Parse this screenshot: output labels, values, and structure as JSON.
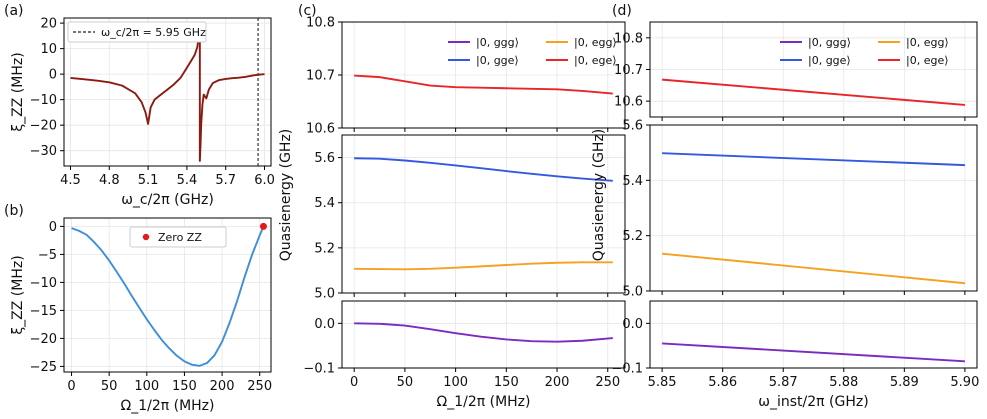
{
  "chart_data": [
    {
      "id": "a",
      "panel_label": "(a)",
      "type": "line",
      "xlabel": "ω_c/2π (GHz)",
      "ylabel": "ξ_ZZ (MHz)",
      "xlim": [
        4.45,
        6.05
      ],
      "ylim": [
        -36,
        22
      ],
      "xticks": [
        4.5,
        4.8,
        5.1,
        5.4,
        5.7,
        6.0
      ],
      "xtick_labels": [
        "4.5",
        "4.8",
        "5.1",
        "5.4",
        "5.7",
        "6.0"
      ],
      "yticks": [
        -30,
        -20,
        -10,
        0,
        10,
        20
      ],
      "ytick_labels": [
        "−30",
        "−20",
        "−10",
        "0",
        "10",
        "20"
      ],
      "legend": "ω_c/2π = 5.95 GHz",
      "vline_x": 5.95,
      "series": [
        {
          "name": "ξ_ZZ vs ω_c",
          "color": "#8b1a12",
          "x": [
            4.5,
            4.6,
            4.7,
            4.8,
            4.9,
            5.0,
            5.05,
            5.08,
            5.1,
            5.12,
            5.15,
            5.2,
            5.25,
            5.3,
            5.35,
            5.4,
            5.43,
            5.46,
            5.48,
            5.49,
            5.5,
            5.5,
            5.505,
            5.51,
            5.52,
            5.53,
            5.55,
            5.57,
            5.6,
            5.65,
            5.7,
            5.75,
            5.8,
            5.85,
            5.9,
            5.95,
            6.0
          ],
          "y": [
            -1.5,
            -2.0,
            -2.5,
            -3.2,
            -4.5,
            -7.5,
            -11,
            -15,
            -19.5,
            -13,
            -10,
            -8,
            -6,
            -4,
            -1.5,
            2.5,
            5,
            7.5,
            10.5,
            14,
            20,
            -34,
            -28,
            -20,
            -12,
            -8,
            -9.5,
            -6,
            -3.5,
            -2.3,
            -1.9,
            -1.6,
            -1.4,
            -1.1,
            -0.6,
            -0.2,
            0
          ]
        }
      ]
    },
    {
      "id": "b",
      "panel_label": "(b)",
      "type": "line",
      "xlabel": "Ω_1/2π (MHz)",
      "ylabel": "ξ_ZZ (MHz)",
      "xlim": [
        -10,
        265
      ],
      "ylim": [
        -26,
        1.5
      ],
      "xticks": [
        0,
        50,
        100,
        150,
        200,
        250
      ],
      "xtick_labels": [
        "0",
        "50",
        "100",
        "150",
        "200",
        "250"
      ],
      "yticks": [
        -25,
        -20,
        -15,
        -10,
        -5,
        0
      ],
      "ytick_labels": [
        "−25",
        "−20",
        "−15",
        "−10",
        "−5",
        "0"
      ],
      "legend": "Zero ZZ",
      "series": [
        {
          "name": "ξ_ZZ vs Ω_1",
          "color": "#3c8fdb",
          "x": [
            0,
            10,
            20,
            30,
            40,
            50,
            60,
            70,
            80,
            90,
            100,
            110,
            120,
            130,
            140,
            150,
            160,
            170,
            180,
            190,
            200,
            210,
            220,
            230,
            240,
            250,
            255
          ],
          "y": [
            -0.3,
            -0.8,
            -1.5,
            -2.8,
            -4.3,
            -6.1,
            -8.1,
            -10.2,
            -12.4,
            -14.5,
            -16.6,
            -18.5,
            -20.3,
            -21.8,
            -23.1,
            -24.1,
            -24.7,
            -24.9,
            -24.4,
            -23.0,
            -20.6,
            -17.2,
            -13.3,
            -9.0,
            -5.0,
            -1.6,
            0
          ]
        }
      ],
      "marker": {
        "name": "Zero ZZ",
        "x": 255,
        "y": 0,
        "color": "#e31a1c"
      }
    },
    {
      "id": "c",
      "panel_label": "(c)",
      "type": "line",
      "xlabel": "Ω_1/2π (MHz)",
      "ylabel": "Quasienergy (GHz)",
      "xlim": [
        -12,
        267
      ],
      "xticks": [
        0,
        50,
        100,
        150,
        200,
        250
      ],
      "xtick_labels": [
        "0",
        "50",
        "100",
        "150",
        "200",
        "250"
      ],
      "legend": [
        "|0, ggg⟩",
        "|0, egg⟩",
        "|0, gge⟩",
        "|0, ege⟩"
      ],
      "subplots": [
        {
          "ylim": [
            10.6,
            10.8
          ],
          "yticks": [
            10.6,
            10.7,
            10.8
          ],
          "ytick_labels": [
            "10.6",
            "10.7",
            "10.8"
          ],
          "series": [
            {
              "name": "|0, ege⟩",
              "color": "#e8262a",
              "x": [
                0,
                25,
                50,
                75,
                100,
                125,
                150,
                175,
                200,
                225,
                255
              ],
              "y": [
                10.699,
                10.696,
                10.688,
                10.68,
                10.677,
                10.676,
                10.675,
                10.674,
                10.673,
                10.67,
                10.665
              ]
            }
          ]
        },
        {
          "ylim": [
            5.0,
            5.7
          ],
          "yticks": [
            5.0,
            5.2,
            5.4,
            5.6
          ],
          "ytick_labels": [
            "5.0",
            "5.2",
            "5.4",
            "5.6"
          ],
          "series": [
            {
              "name": "|0, gge⟩",
              "color": "#3459e0",
              "x": [
                0,
                25,
                50,
                75,
                100,
                125,
                150,
                175,
                200,
                225,
                255
              ],
              "y": [
                5.597,
                5.595,
                5.587,
                5.577,
                5.565,
                5.553,
                5.54,
                5.528,
                5.517,
                5.507,
                5.497
              ]
            },
            {
              "name": "|0, egg⟩",
              "color": "#f5a122",
              "x": [
                0,
                25,
                50,
                75,
                100,
                125,
                150,
                175,
                200,
                225,
                255
              ],
              "y": [
                5.107,
                5.106,
                5.105,
                5.107,
                5.112,
                5.118,
                5.124,
                5.13,
                5.134,
                5.136,
                5.136
              ]
            }
          ]
        },
        {
          "ylim": [
            -0.1,
            0.05
          ],
          "yticks": [
            -0.1,
            0.0
          ],
          "ytick_labels": [
            "−0.1",
            "0.0"
          ],
          "series": [
            {
              "name": "|0, ggg⟩",
              "color": "#7b2bbf",
              "x": [
                0,
                25,
                50,
                75,
                100,
                125,
                150,
                175,
                200,
                225,
                255
              ],
              "y": [
                0.0,
                -0.001,
                -0.005,
                -0.013,
                -0.022,
                -0.03,
                -0.036,
                -0.04,
                -0.041,
                -0.039,
                -0.033
              ]
            }
          ]
        }
      ]
    },
    {
      "id": "d",
      "panel_label": "(d)",
      "type": "line",
      "xlabel": "ω_inst/2π (GHz)",
      "ylabel": "Quasienergy (GHz)",
      "xlim": [
        5.848,
        5.902
      ],
      "xticks": [
        5.85,
        5.86,
        5.87,
        5.88,
        5.89,
        5.9
      ],
      "xtick_labels": [
        "5.85",
        "5.86",
        "5.87",
        "5.88",
        "5.89",
        "5.90"
      ],
      "legend": [
        "|0, ggg⟩",
        "|0, egg⟩",
        "|0, gge⟩",
        "|0, ege⟩"
      ],
      "subplots": [
        {
          "ylim": [
            10.55,
            10.85
          ],
          "yticks": [
            10.6,
            10.7,
            10.8
          ],
          "ytick_labels": [
            "10.6",
            "10.7",
            "10.8"
          ],
          "series": [
            {
              "name": "|0, ege⟩",
              "color": "#e8262a",
              "x": [
                5.85,
                5.9
              ],
              "y": [
                10.668,
                10.588
              ]
            }
          ]
        },
        {
          "ylim": [
            5.0,
            5.6
          ],
          "yticks": [
            5.0,
            5.2,
            5.4,
            5.6
          ],
          "ytick_labels": [
            "5.0",
            "5.2",
            "5.4",
            "5.6"
          ],
          "series": [
            {
              "name": "|0, gge⟩",
              "color": "#3459e0",
              "x": [
                5.85,
                5.9
              ],
              "y": [
                5.498,
                5.455
              ]
            },
            {
              "name": "|0, egg⟩",
              "color": "#f5a122",
              "x": [
                5.85,
                5.9
              ],
              "y": [
                5.135,
                5.028
              ]
            }
          ]
        },
        {
          "ylim": [
            -0.1,
            0.05
          ],
          "yticks": [
            -0.1,
            0.0
          ],
          "ytick_labels": [
            "−0.1",
            "0.0"
          ],
          "series": [
            {
              "name": "|0, ggg⟩",
              "color": "#7b2bbf",
              "x": [
                5.85,
                5.9
              ],
              "y": [
                -0.045,
                -0.085
              ]
            }
          ]
        }
      ]
    }
  ]
}
